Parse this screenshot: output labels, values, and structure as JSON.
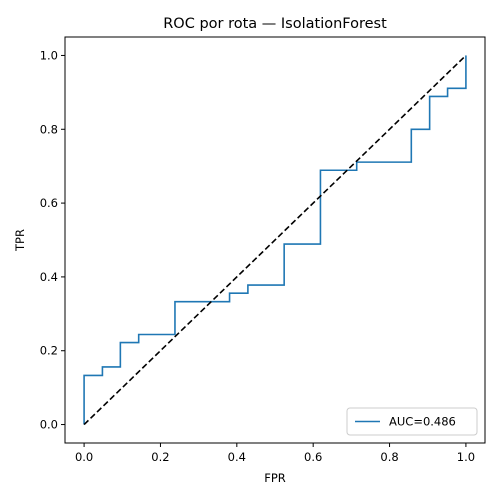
{
  "chart_data": {
    "type": "line",
    "title": "ROC por rota — IsolationForest",
    "xlabel": "FPR",
    "ylabel": "TPR",
    "xlim": [
      -0.05,
      1.05
    ],
    "ylim": [
      -0.05,
      1.05
    ],
    "xticks": [
      0.0,
      0.2,
      0.4,
      0.6,
      0.8,
      1.0
    ],
    "yticks": [
      0.0,
      0.2,
      0.4,
      0.6,
      0.8,
      1.0
    ],
    "xtick_labels": [
      "0.0",
      "0.2",
      "0.4",
      "0.6",
      "0.8",
      "1.0"
    ],
    "ytick_labels": [
      "0.0",
      "0.2",
      "0.4",
      "0.6",
      "0.8",
      "1.0"
    ],
    "grid": false,
    "legend_position": "lower-right",
    "series": [
      {
        "name": "AUC=0.486",
        "color": "#1f77b4",
        "style": "solid",
        "x": [
          0.0,
          0.0,
          0.048,
          0.048,
          0.095,
          0.095,
          0.143,
          0.143,
          0.238,
          0.238,
          0.381,
          0.381,
          0.429,
          0.429,
          0.524,
          0.524,
          0.619,
          0.619,
          0.714,
          0.714,
          0.857,
          0.857,
          0.905,
          0.905,
          0.952,
          0.952,
          1.0,
          1.0
        ],
        "y": [
          0.0,
          0.133,
          0.133,
          0.156,
          0.156,
          0.222,
          0.222,
          0.244,
          0.244,
          0.333,
          0.333,
          0.356,
          0.356,
          0.378,
          0.378,
          0.489,
          0.489,
          0.689,
          0.689,
          0.711,
          0.711,
          0.8,
          0.8,
          0.889,
          0.889,
          0.911,
          0.911,
          1.0
        ]
      },
      {
        "color": "#000000",
        "style": "dashed",
        "x": [
          0.0,
          1.0
        ],
        "y": [
          0.0,
          1.0
        ]
      }
    ]
  }
}
